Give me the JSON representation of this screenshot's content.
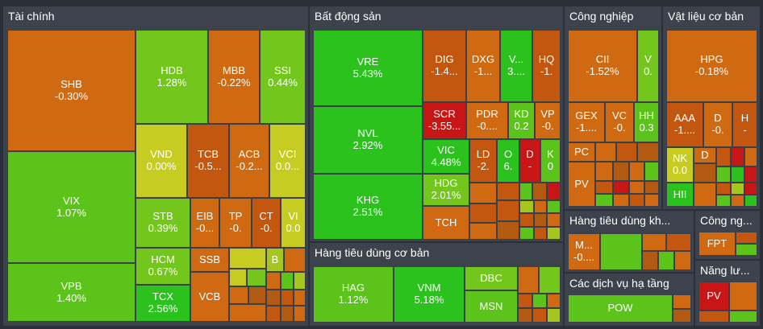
{
  "colors": {
    "orange": "#cf6a12",
    "dark_orange": "#c4570f",
    "light_green": "#73c61c",
    "bright_green": "#5cc31a",
    "green": "#2bc21e",
    "yellow": "#c7cc22",
    "yellow_green": "#a6c61d",
    "red": "#c81616",
    "brown": "#b25a12"
  },
  "chart_data": {
    "type": "heatmap",
    "sectors": [
      {
        "name": "Tài chính",
        "stocks": [
          {
            "symbol": "SHB",
            "change": "-0.30%"
          },
          {
            "symbol": "VIX",
            "change": "1.07%"
          },
          {
            "symbol": "VPB",
            "change": "1.40%"
          },
          {
            "symbol": "HDB",
            "change": "1.28%"
          },
          {
            "symbol": "MBB",
            "change": "-0.22%"
          },
          {
            "symbol": "SSI",
            "change": "0.44%"
          },
          {
            "symbol": "VND",
            "change": "0.00%"
          },
          {
            "symbol": "TCB",
            "change": "-0.5..."
          },
          {
            "symbol": "ACB",
            "change": "-0.2..."
          },
          {
            "symbol": "VCI",
            "change": "0.0..."
          },
          {
            "symbol": "STB",
            "change": "0.39%"
          },
          {
            "symbol": "EIB",
            "change": "-0..."
          },
          {
            "symbol": "TP",
            "change": "-0."
          },
          {
            "symbol": "CT",
            "change": "-0."
          },
          {
            "symbol": "VI",
            "change": "0.0"
          },
          {
            "symbol": "HCM",
            "change": "0.67%"
          },
          {
            "symbol": "SSB",
            "change": ""
          },
          {
            "symbol": "B",
            "change": ""
          },
          {
            "symbol": "TCX",
            "change": "2.56%"
          },
          {
            "symbol": "VCB",
            "change": ""
          }
        ]
      },
      {
        "name": "Bất động sản",
        "stocks": [
          {
            "symbol": "VRE",
            "change": "5.43%"
          },
          {
            "symbol": "NVL",
            "change": "2.92%"
          },
          {
            "symbol": "KHG",
            "change": "2.51%"
          },
          {
            "symbol": "DIG",
            "change": "-1.4..."
          },
          {
            "symbol": "DXG",
            "change": "-1..."
          },
          {
            "symbol": "V...",
            "change": "3...."
          },
          {
            "symbol": "HQ",
            "change": "-1."
          },
          {
            "symbol": "SCR",
            "change": "-3.55..."
          },
          {
            "symbol": "PDR",
            "change": "-0...."
          },
          {
            "symbol": "KD",
            "change": "0.2"
          },
          {
            "symbol": "VP",
            "change": "-0."
          },
          {
            "symbol": "VIC",
            "change": "4.48%"
          },
          {
            "symbol": "LD",
            "change": "-2."
          },
          {
            "symbol": "O",
            "change": "6."
          },
          {
            "symbol": "D",
            "change": "-"
          },
          {
            "symbol": "K",
            "change": "0"
          },
          {
            "symbol": "HDG",
            "change": "2.01%"
          },
          {
            "symbol": "TCH",
            "change": ""
          }
        ]
      },
      {
        "name": "Công nghiệp",
        "stocks": [
          {
            "symbol": "CII",
            "change": "-1.52%"
          },
          {
            "symbol": "V",
            "change": "0."
          },
          {
            "symbol": "GEX",
            "change": "-1...."
          },
          {
            "symbol": "VC",
            "change": "-0."
          },
          {
            "symbol": "HH",
            "change": "0.3"
          },
          {
            "symbol": "PC",
            "change": ""
          },
          {
            "symbol": "PV",
            "change": ""
          }
        ]
      },
      {
        "name": "Vật liệu cơ bản",
        "stocks": [
          {
            "symbol": "HPG",
            "change": "-0.18%"
          },
          {
            "symbol": "AAA",
            "change": "-1...."
          },
          {
            "symbol": "D",
            "change": "-0."
          },
          {
            "symbol": "H",
            "change": "-"
          },
          {
            "symbol": "NK",
            "change": "0.0"
          },
          {
            "symbol": "D",
            "change": ""
          },
          {
            "symbol": "HII",
            "change": ""
          }
        ]
      },
      {
        "name": "Hàng tiêu dùng cơ bản",
        "stocks": [
          {
            "symbol": "HAG",
            "change": "1.12%"
          },
          {
            "symbol": "VNM",
            "change": "5.18%"
          },
          {
            "symbol": "DBC",
            "change": ""
          },
          {
            "symbol": "MSN",
            "change": ""
          }
        ]
      },
      {
        "name": "Hàng tiêu dùng kh...",
        "stocks": [
          {
            "symbol": "M...",
            "change": "-0...."
          }
        ]
      },
      {
        "name": "Công ng...",
        "stocks": [
          {
            "symbol": "FPT",
            "change": ""
          }
        ]
      },
      {
        "name": "Các dịch vụ hạ tầng",
        "stocks": [
          {
            "symbol": "POW",
            "change": ""
          }
        ]
      },
      {
        "name": "Năng lư...",
        "stocks": [
          {
            "symbol": "PV",
            "change": ""
          }
        ]
      }
    ]
  }
}
